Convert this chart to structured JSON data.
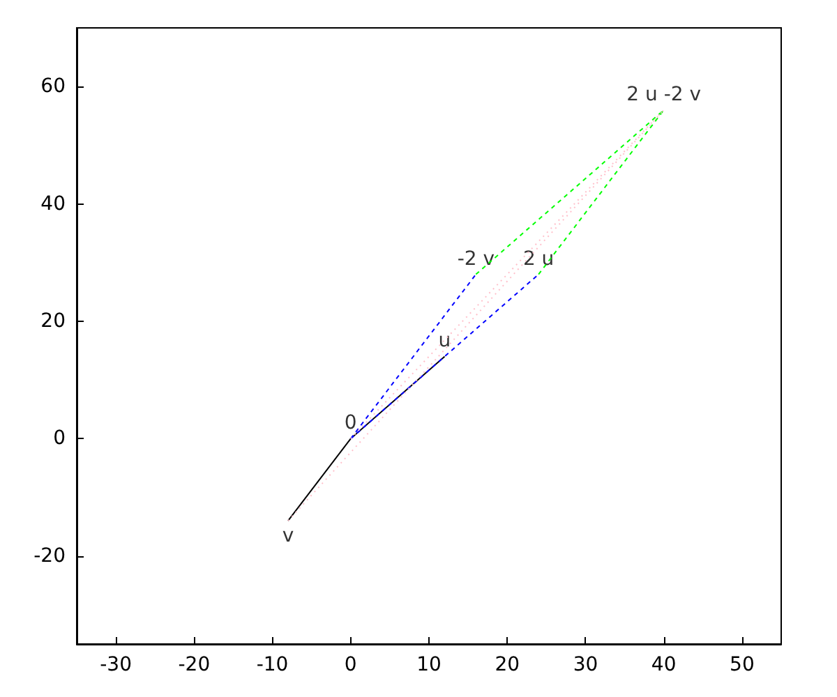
{
  "chart_data": {
    "type": "line",
    "xlim": [
      -35,
      55
    ],
    "ylim": [
      -35,
      70
    ],
    "xticks": [
      -30,
      -20,
      -10,
      0,
      10,
      20,
      30,
      40,
      50
    ],
    "yticks": [
      -20,
      0,
      20,
      40,
      60
    ],
    "grid": false,
    "marker": "none",
    "series": [
      {
        "color": "#000000",
        "line_style": "solid",
        "x": [
          -8,
          0,
          12
        ],
        "values": [
          -14,
          0,
          14
        ]
      },
      {
        "color": "#0000ff",
        "line_style": "dashed",
        "x": [
          0,
          16
        ],
        "values": [
          0,
          28
        ]
      },
      {
        "color": "#0000ff",
        "line_style": "dashed",
        "x": [
          0,
          24
        ],
        "values": [
          0,
          28
        ]
      },
      {
        "color": "#00ff00",
        "line_style": "dashed",
        "x": [
          16,
          40
        ],
        "values": [
          28,
          56
        ]
      },
      {
        "color": "#00ff00",
        "line_style": "dashed",
        "x": [
          24,
          40
        ],
        "values": [
          28,
          56
        ]
      },
      {
        "color": "#ffc0cb",
        "line_style": "dotted",
        "x": [
          0,
          40
        ],
        "values": [
          0,
          56
        ]
      },
      {
        "color": "#ffc0cb",
        "line_style": "dotted",
        "x": [
          -8,
          40
        ],
        "values": [
          -14,
          56
        ]
      }
    ],
    "annotations": [
      {
        "text": "0",
        "x": 0,
        "y": 0
      },
      {
        "text": "u",
        "x": 12,
        "y": 14
      },
      {
        "text": "v",
        "x": -8,
        "y": -14
      },
      {
        "text": "-2 v",
        "x": 16,
        "y": 28
      },
      {
        "text": "2 u",
        "x": 24,
        "y": 28
      },
      {
        "text": "2 u -2 v",
        "x": 40,
        "y": 56
      }
    ]
  }
}
